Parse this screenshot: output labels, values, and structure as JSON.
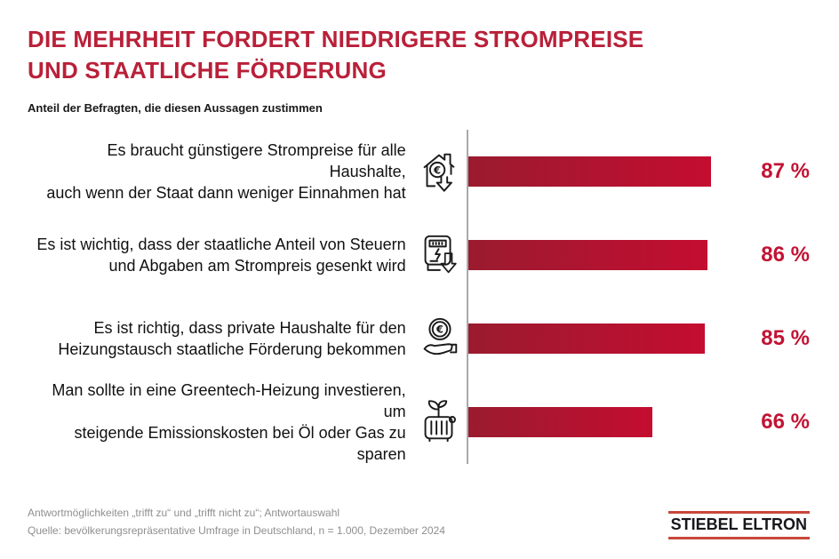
{
  "header": {
    "title_line1": "DIE MEHRHEIT FORDERT NIEDRIGERE STROMPREISE",
    "title_line2": "UND STAATLICHE FÖRDERUNG",
    "subtitle": "Anteil der Befragten, die diesen Aussagen zustimmen"
  },
  "chart_data": {
    "type": "bar",
    "orientation": "horizontal",
    "unit": "%",
    "xlim": [
      0,
      100
    ],
    "values": [
      87,
      86,
      85,
      66
    ],
    "categories": [
      "Es braucht günstigere Strompreise für alle Haushalte, auch wenn der Staat dann weniger Einnahmen hat",
      "Es ist wichtig, dass der staatliche Anteil von Steuern und Abgaben am Strompreis gesenkt wird",
      "Es ist richtig, dass private Haushalte für den Heizungstausch staatliche Förderung bekommen",
      "Man sollte in eine Greentech-Heizung investieren, um steigende Emissionskosten bei Öl oder Gas zu sparen"
    ],
    "categories_lines": [
      [
        "Es braucht günstigere Strompreise für alle Haushalte,",
        "auch wenn der Staat dann weniger Einnahmen hat"
      ],
      [
        "Es ist wichtig, dass der staatliche Anteil von Steuern",
        "und Abgaben am Strompreis gesenkt wird"
      ],
      [
        "Es ist richtig, dass private Haushalte für den",
        "Heizungstausch staatliche Förderung bekommen"
      ],
      [
        "Man sollte in eine Greentech-Heizung investieren, um",
        "steigende Emissionskosten bei Öl oder Gas zu sparen"
      ]
    ],
    "icons": [
      "house-euro-price-down",
      "electricity-meter-price-down",
      "euro-coin-in-hand",
      "greentech-heater-plant"
    ],
    "bar_color_left": "#9a1b2f",
    "bar_color_right": "#c40d30",
    "value_label_color": "#c21334",
    "title": "DIE MEHRHEIT FORDERT NIEDRIGERE STROMPREISE UND STAATLICHE FÖRDERUNG",
    "subtitle": "Anteil der Befragten, die diesen Aussagen zustimmen",
    "legend": "none",
    "grid": "none"
  },
  "footer": {
    "note_line1": "Antwortmöglichkeiten „trifft zu“ und „trifft nicht zu“; Antwortauswahl",
    "note_line2": "Quelle: bevölkerungsrepräsentative Umfrage in Deutschland, n = 1.000, Dezember 2024",
    "logo_text": "STIEBEL ELTRON"
  }
}
